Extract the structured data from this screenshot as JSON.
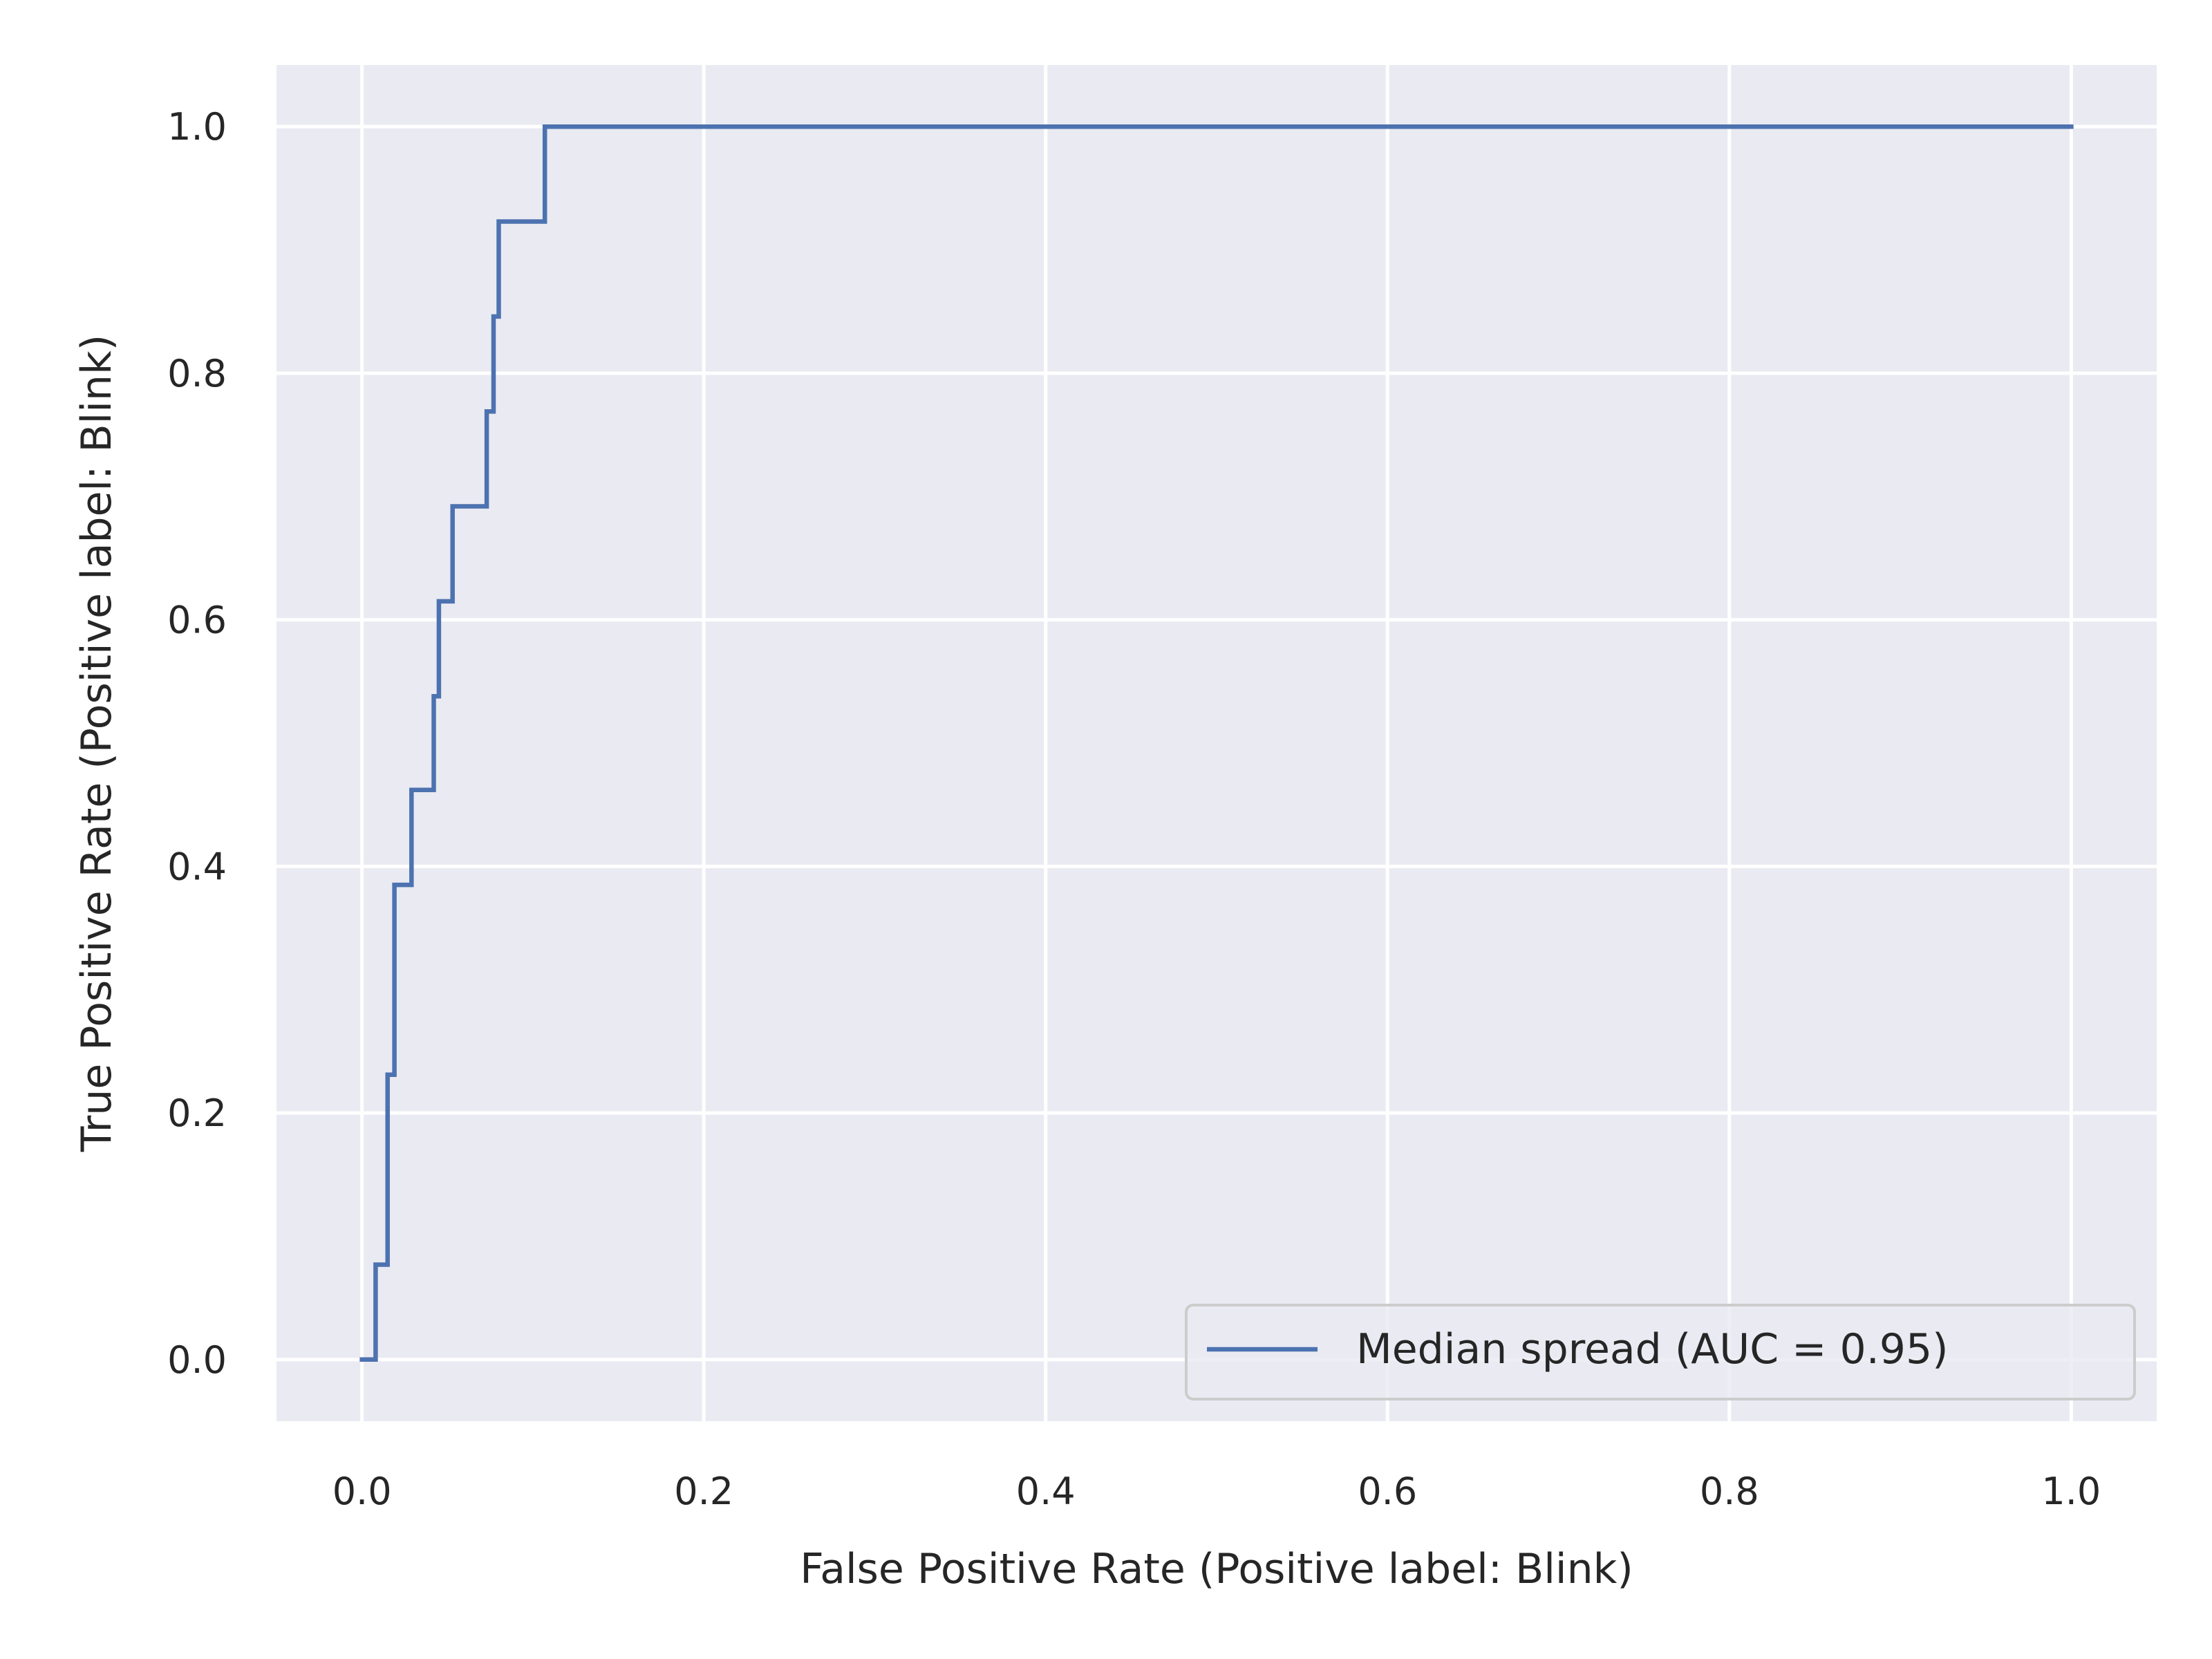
{
  "chart_data": {
    "type": "line",
    "title": "",
    "xlabel": "False Positive Rate (Positive label: Blink)",
    "ylabel": "True Positive Rate (Positive label: Blink)",
    "xlim": [
      -0.05,
      1.05
    ],
    "ylim": [
      -0.05,
      1.05
    ],
    "xticks": [
      0.0,
      0.2,
      0.4,
      0.6,
      0.8,
      1.0
    ],
    "yticks": [
      0.0,
      0.2,
      0.4,
      0.6,
      0.8,
      1.0
    ],
    "xtick_labels": [
      "0.0",
      "0.2",
      "0.4",
      "0.6",
      "0.8",
      "1.0"
    ],
    "ytick_labels": [
      "0.0",
      "0.2",
      "0.4",
      "0.6",
      "0.8",
      "1.0"
    ],
    "grid": true,
    "legend_position": "lower-right",
    "colors": {
      "background": "#eaeaf2",
      "grid": "#ffffff",
      "series": "#4c72b0",
      "text": "#262626"
    },
    "series": [
      {
        "name": "Median spread (AUC = 0.95)",
        "x": [
          0.0,
          0.008,
          0.008,
          0.015,
          0.015,
          0.019,
          0.019,
          0.029,
          0.029,
          0.042,
          0.042,
          0.045,
          0.045,
          0.053,
          0.053,
          0.073,
          0.073,
          0.077,
          0.077,
          0.08,
          0.08,
          0.107,
          0.107,
          1.0
        ],
        "y": [
          0.0,
          0.0,
          0.077,
          0.077,
          0.231,
          0.231,
          0.385,
          0.385,
          0.462,
          0.462,
          0.538,
          0.538,
          0.615,
          0.615,
          0.692,
          0.692,
          0.769,
          0.769,
          0.846,
          0.846,
          0.923,
          0.923,
          1.0,
          1.0
        ]
      }
    ]
  }
}
